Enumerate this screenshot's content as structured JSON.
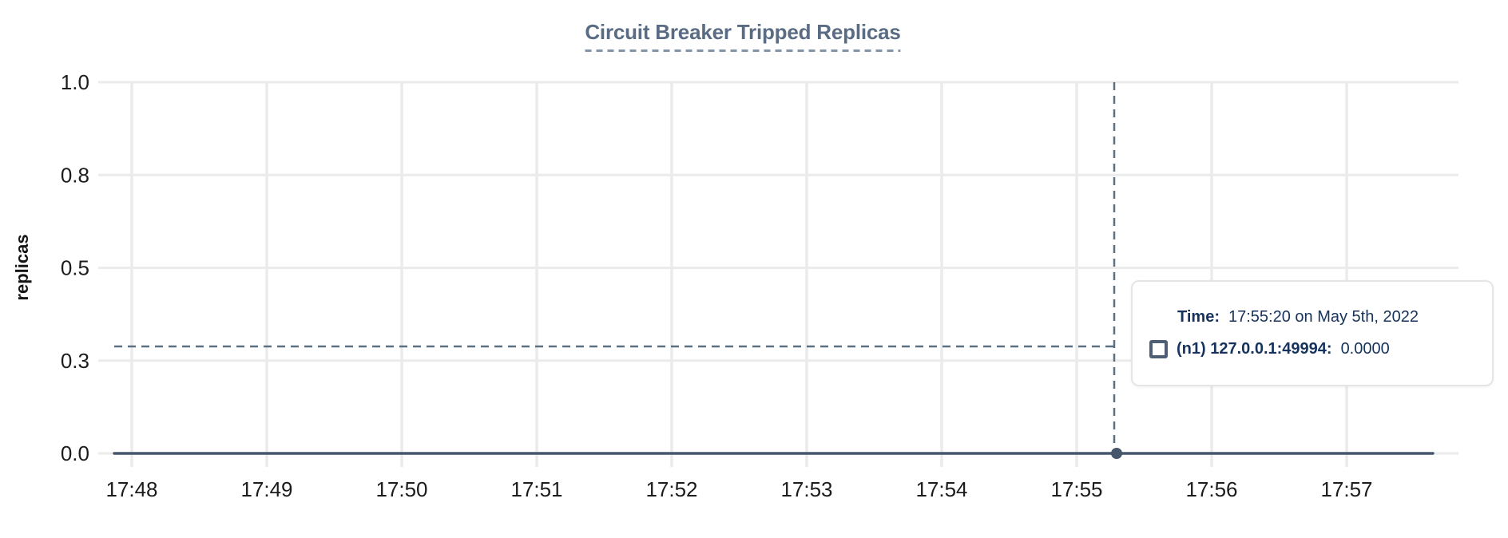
{
  "title": {
    "text": "Circuit Breaker Tripped Replicas"
  },
  "axes": {
    "y_label": "replicas"
  },
  "tooltip": {
    "time_label": "Time:",
    "time_value": "17:55:20 on May 5th, 2022",
    "series_label": "(n1) 127.0.0.1:49994:",
    "series_value": "0.0000"
  },
  "colors": {
    "title_text": "#5a6c84",
    "title_underline": "#8293aa",
    "series_line": "#46566b",
    "hover_dot": "#46566b",
    "crosshair": "#5d7082",
    "gridline": "#ebebeb",
    "tick_text": "#1c1c1c",
    "tooltip_text": "#17335d",
    "tooltip_border": "#e5e5e5",
    "legend_swatch_border": "#4e5f75"
  },
  "chart_data": {
    "type": "line",
    "title": "Circuit Breaker Tripped Replicas",
    "xlabel": "",
    "ylabel": "replicas",
    "ylim": [
      0.0,
      1.0
    ],
    "grid": true,
    "y_tick_labels": [
      "1.0",
      "0.8",
      "0.5",
      "0.3",
      "0.0"
    ],
    "y_tick_values": [
      1.0,
      0.75,
      0.5,
      0.25,
      0.0
    ],
    "x_tick_labels": [
      "17:48",
      "17:49",
      "17:50",
      "17:51",
      "17:52",
      "17:53",
      "17:54",
      "17:55",
      "17:56",
      "17:57"
    ],
    "series": [
      {
        "name": "(n1) 127.0.0.1:49994",
        "value": 0.0,
        "shape": "constant-flat-line",
        "x_span_approx": [
          "17:47:52",
          "17:57:38"
        ]
      }
    ],
    "hover": {
      "crosshair_x_time": "17:55:20",
      "crosshair_y_value_approx": 0.29,
      "point_x_time": "17:55:20",
      "point_y_value": 0.0,
      "point_value_formatted": "0.0000"
    },
    "legend_position": "hover-tooltip"
  }
}
